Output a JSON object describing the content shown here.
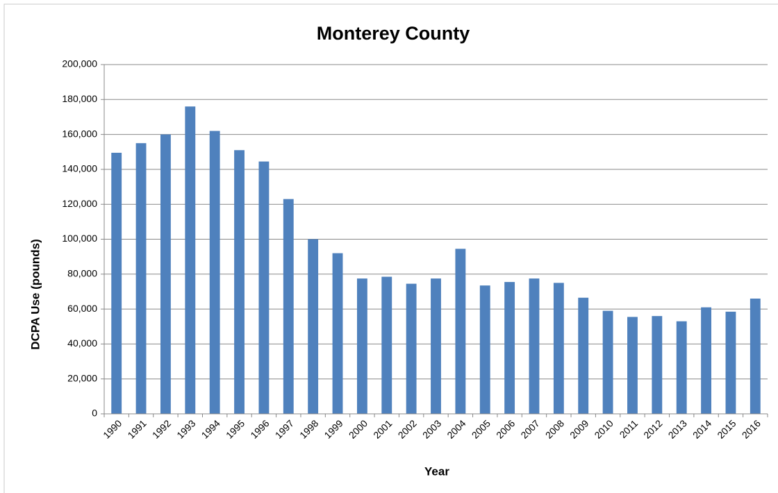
{
  "chart_data": {
    "type": "bar",
    "title": "Monterey County",
    "x_label": "Year",
    "y_label": "DCPA Use (pounds)",
    "categories": [
      "1990",
      "1991",
      "1992",
      "1993",
      "1994",
      "1995",
      "1996",
      "1997",
      "1998",
      "1999",
      "2000",
      "2001",
      "2002",
      "2003",
      "2004",
      "2005",
      "2006",
      "2007",
      "2008",
      "2009",
      "2010",
      "2011",
      "2012",
      "2013",
      "2014",
      "2015",
      "2016"
    ],
    "values": [
      149500,
      155000,
      160000,
      176000,
      162000,
      151000,
      144500,
      123000,
      100000,
      92000,
      77500,
      78500,
      74500,
      77500,
      94500,
      73500,
      75500,
      77500,
      75000,
      66500,
      59000,
      55500,
      56000,
      53000,
      61000,
      58500,
      66000
    ],
    "color": "#4f81bd",
    "ylim": [
      0,
      200000
    ],
    "yticks": [
      0,
      {
        "value": 20000,
        "label": "20,000"
      },
      {
        "value": 40000,
        "label": "40,000"
      },
      {
        "value": 60000,
        "label": "60,000"
      },
      {
        "value": 80000,
        "label": "80,000"
      },
      {
        "value": 100000,
        "label": "100,000"
      },
      {
        "value": 120000,
        "label": "120,000"
      },
      {
        "value": 140000,
        "label": "140,000"
      },
      {
        "value": 160000,
        "label": "160,000"
      },
      {
        "value": 180000,
        "label": "180,000"
      },
      {
        "value": 200000,
        "label": "200,000"
      }
    ],
    "grid": true
  }
}
